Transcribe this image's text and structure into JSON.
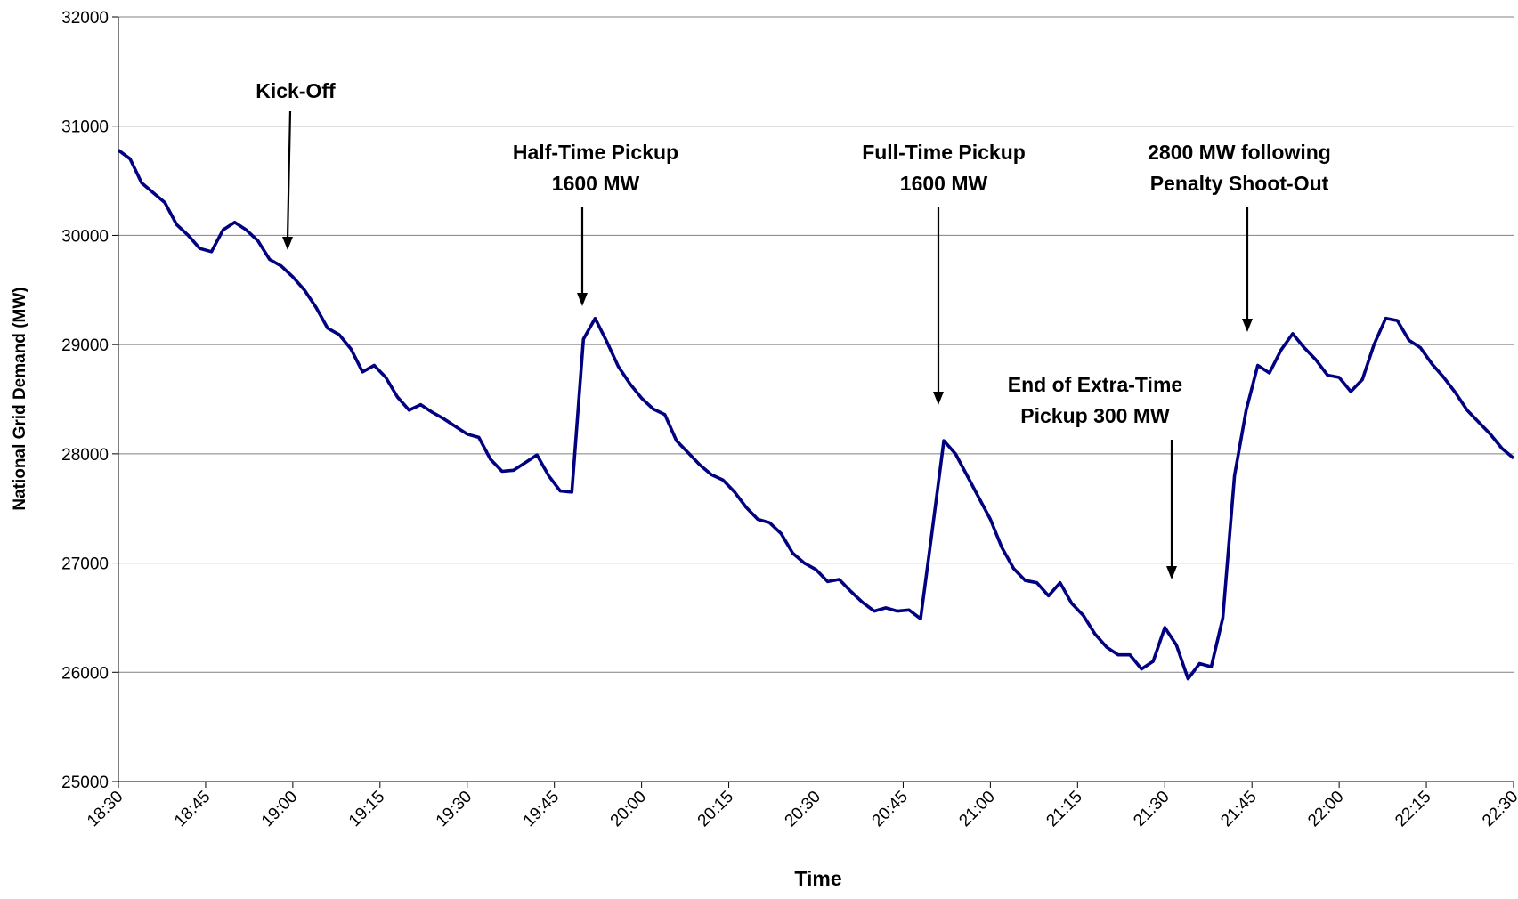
{
  "chart_data": {
    "type": "line",
    "x_label": "Time",
    "y_label": "National Grid Demand (MW)",
    "x": [
      "18:30",
      "18:32",
      "18:34",
      "18:36",
      "18:38",
      "18:40",
      "18:42",
      "18:44",
      "18:46",
      "18:48",
      "18:50",
      "18:52",
      "18:54",
      "18:56",
      "18:58",
      "19:00",
      "19:02",
      "19:04",
      "19:06",
      "19:08",
      "19:10",
      "19:12",
      "19:14",
      "19:16",
      "19:18",
      "19:20",
      "19:22",
      "19:24",
      "19:26",
      "19:28",
      "19:30",
      "19:32",
      "19:34",
      "19:36",
      "19:38",
      "19:40",
      "19:42",
      "19:44",
      "19:46",
      "19:48",
      "19:50",
      "19:52",
      "19:54",
      "19:56",
      "19:58",
      "20:00",
      "20:02",
      "20:04",
      "20:06",
      "20:08",
      "20:10",
      "20:12",
      "20:14",
      "20:16",
      "20:18",
      "20:20",
      "20:22",
      "20:24",
      "20:26",
      "20:28",
      "20:30",
      "20:32",
      "20:34",
      "20:36",
      "20:38",
      "20:40",
      "20:42",
      "20:44",
      "20:46",
      "20:48",
      "20:50",
      "20:52",
      "20:54",
      "20:56",
      "20:58",
      "21:00",
      "21:02",
      "21:04",
      "21:06",
      "21:08",
      "21:10",
      "21:12",
      "21:14",
      "21:16",
      "21:18",
      "21:20",
      "21:22",
      "21:24",
      "21:26",
      "21:28",
      "21:30",
      "21:32",
      "21:34",
      "21:36",
      "21:38",
      "21:40",
      "21:42",
      "21:44",
      "21:46",
      "21:48",
      "21:50",
      "21:52",
      "21:54",
      "21:56",
      "21:58",
      "22:00",
      "22:02",
      "22:04",
      "22:06",
      "22:08",
      "22:10",
      "22:12",
      "22:14",
      "22:16",
      "22:18",
      "22:20",
      "22:22",
      "22:24",
      "22:26",
      "22:28",
      "22:30"
    ],
    "series": [
      {
        "name": "National Grid Demand",
        "color": "#000080",
        "values": [
          30780,
          30700,
          30480,
          30390,
          30300,
          30100,
          30000,
          29880,
          29850,
          30050,
          30120,
          30050,
          29950,
          29780,
          29720,
          29620,
          29500,
          29340,
          29150,
          29090,
          28960,
          28750,
          28810,
          28700,
          28520,
          28400,
          28450,
          28380,
          28320,
          28250,
          28180,
          28150,
          27950,
          27840,
          27850,
          27920,
          27990,
          27800,
          27660,
          27650,
          29050,
          29240,
          29030,
          28800,
          28640,
          28510,
          28410,
          28360,
          28120,
          28010,
          27900,
          27810,
          27760,
          27650,
          27510,
          27400,
          27370,
          27270,
          27090,
          27000,
          26940,
          26830,
          26850,
          26740,
          26640,
          26560,
          26590,
          26560,
          26570,
          26490,
          27300,
          28120,
          28000,
          27800,
          27600,
          27400,
          27140,
          26950,
          26840,
          26820,
          26700,
          26820,
          26630,
          26520,
          26350,
          26230,
          26160,
          26160,
          26030,
          26100,
          26410,
          26250,
          25940,
          26080,
          26050,
          26500,
          27800,
          28400,
          28810,
          28740,
          28950,
          29100,
          28970,
          28860,
          28720,
          28700,
          28570,
          28680,
          29000,
          29240,
          29220,
          29040,
          28970,
          28820,
          28700,
          28560,
          28400,
          28290,
          28180,
          28050,
          27960
        ]
      }
    ],
    "xlim": [
      "18:30",
      "22:30"
    ],
    "xticks": [
      "18:30",
      "18:45",
      "19:00",
      "19:15",
      "19:30",
      "19:45",
      "20:00",
      "20:15",
      "20:30",
      "20:45",
      "21:00",
      "21:15",
      "21:30",
      "21:45",
      "22:00",
      "22:15",
      "22:30"
    ],
    "ylim": [
      25000,
      32000
    ],
    "yticks": [
      25000,
      26000,
      27000,
      28000,
      29000,
      30000,
      31000,
      32000
    ],
    "grid": true,
    "annotations": [
      [
        "Kick-Off"
      ],
      [
        "Half-Time Pickup",
        "1600 MW"
      ],
      [
        "Full-Time Pickup",
        "1600 MW"
      ],
      [
        "End of Extra-Time",
        "Pickup 300 MW"
      ],
      [
        "2800 MW following",
        "Penalty Shoot-Out"
      ]
    ]
  }
}
